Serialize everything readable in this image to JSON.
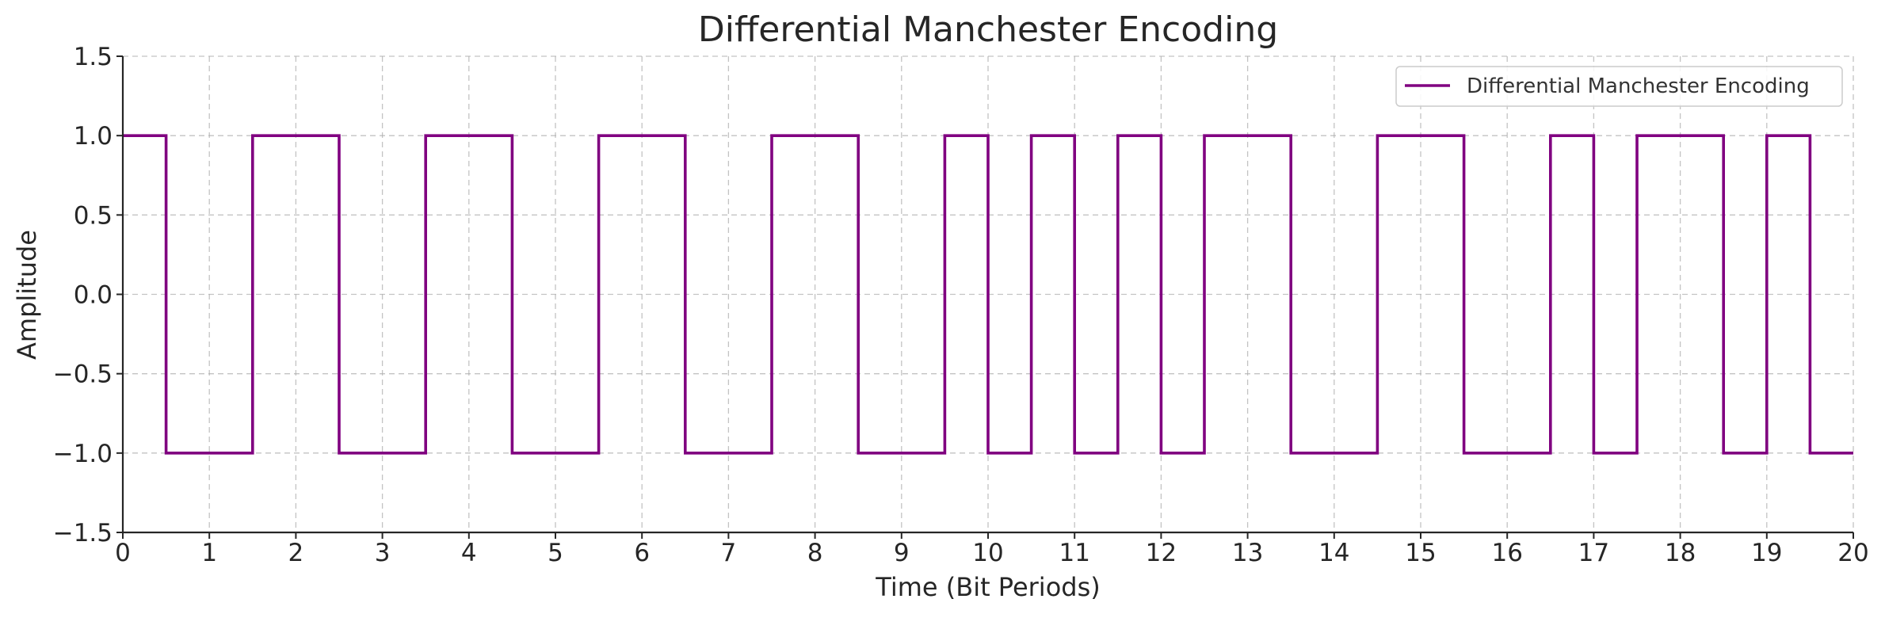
{
  "chart_data": {
    "type": "line",
    "step": "post",
    "title": "Differential Manchester Encoding",
    "xlabel": "Time (Bit Periods)",
    "ylabel": "Amplitude",
    "xlim": [
      0,
      20
    ],
    "ylim": [
      -1.5,
      1.5
    ],
    "grid": true,
    "legend_position": "top-right",
    "xticks": [
      0,
      1,
      2,
      3,
      4,
      5,
      6,
      7,
      8,
      9,
      10,
      11,
      12,
      13,
      14,
      15,
      16,
      17,
      18,
      19,
      20
    ],
    "xtick_labels": [
      "0",
      "1",
      "2",
      "3",
      "4",
      "5",
      "6",
      "7",
      "8",
      "9",
      "10",
      "11",
      "12",
      "13",
      "14",
      "15",
      "16",
      "17",
      "18",
      "19",
      "20"
    ],
    "yticks": [
      1.5,
      1.0,
      0.5,
      0.0,
      -0.5,
      -1.0,
      -1.5
    ],
    "ytick_labels": [
      "1.5",
      "1.0",
      "0.5",
      "0.0",
      "−0.5",
      "−1.0",
      "−1.5"
    ],
    "series": [
      {
        "name": "Differential Manchester Encoding",
        "color": "#800080",
        "x": [
          0,
          0.5,
          1.5,
          2.5,
          3.5,
          4.5,
          5.5,
          6.5,
          7.5,
          8.5,
          9.5,
          10,
          10.5,
          11,
          11.5,
          12,
          12.5,
          13.5,
          14.5,
          15.5,
          16.5,
          17,
          17.5,
          18.5,
          19,
          19.5,
          20
        ],
        "y": [
          1,
          -1,
          1,
          -1,
          1,
          -1,
          1,
          -1,
          1,
          -1,
          1,
          -1,
          1,
          -1,
          1,
          -1,
          1,
          -1,
          1,
          -1,
          1,
          -1,
          1,
          -1,
          1,
          -1,
          -1
        ]
      }
    ]
  }
}
